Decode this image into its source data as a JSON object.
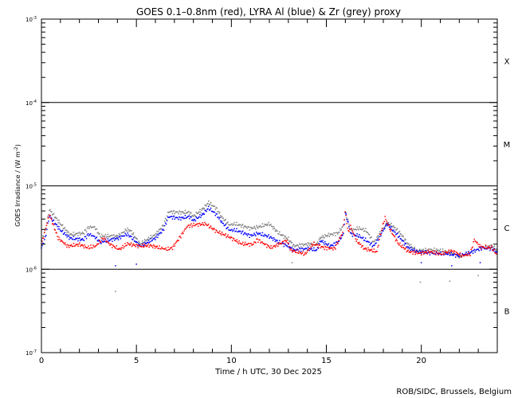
{
  "chart_data": {
    "type": "scatter",
    "title": "GOES 0.1–0.8nm (red), LYRA Al (blue) & Zr (grey) proxy",
    "xlabel": "Time / h UTC, 30 Dec 2025",
    "ylabel": "GOES Irradiance / (W m",
    "ylabel_sup": "-2",
    "ylabel_end": ")",
    "xlim": [
      0,
      24
    ],
    "ylim": [
      1e-07,
      0.001
    ],
    "yscale": "log",
    "x_ticks": [
      "0",
      "5",
      "10",
      "15",
      "20"
    ],
    "x_tick_values": [
      0,
      5,
      10,
      15,
      20
    ],
    "y_ticks": [
      {
        "base": "10",
        "exp": "-3",
        "value": 0.001
      },
      {
        "base": "10",
        "exp": "-4",
        "value": 0.0001
      },
      {
        "base": "10",
        "exp": "-5",
        "value": 1e-05
      },
      {
        "base": "10",
        "exp": "-6",
        "value": 1e-06
      },
      {
        "base": "10",
        "exp": "-7",
        "value": 1e-07
      }
    ],
    "flare_classes": [
      {
        "label": "X",
        "value": 0.000316
      },
      {
        "label": "M",
        "value": 3.16e-05
      },
      {
        "label": "C",
        "value": 3.16e-06
      },
      {
        "label": "B",
        "value": 3.16e-07
      }
    ],
    "threshold_lines": [
      0.0001,
      1e-05,
      1e-06
    ],
    "series": [
      {
        "name": "LYRA Zr proxy",
        "color": "#808080",
        "points": [
          [
            0,
            2.2e-06
          ],
          [
            0.2,
            2.9e-06
          ],
          [
            0.42,
            5.2e-06
          ],
          [
            1.0,
            3.5e-06
          ],
          [
            1.5,
            2.6e-06
          ],
          [
            2.2,
            2.7e-06
          ],
          [
            2.5,
            3.2e-06
          ],
          [
            2.8,
            3.2e-06
          ],
          [
            3.1,
            2.5e-06
          ],
          [
            4.05,
            2.5e-06
          ],
          [
            4.5,
            3e-06
          ],
          [
            4.7,
            2.9e-06
          ],
          [
            5.2,
            2e-06
          ],
          [
            5.6,
            2.3e-06
          ],
          [
            6.0,
            2.6e-06
          ],
          [
            6.4,
            3.3e-06
          ],
          [
            6.7,
            4.9e-06
          ],
          [
            7.3,
            4.8e-06
          ],
          [
            7.8,
            4.8e-06
          ],
          [
            8.0,
            4.3e-06
          ],
          [
            8.5,
            5.3e-06
          ],
          [
            8.8,
            6.3e-06
          ],
          [
            9.2,
            5.4e-06
          ],
          [
            9.5,
            4.2e-06
          ],
          [
            9.9,
            3.4e-06
          ],
          [
            10.2,
            3.5e-06
          ],
          [
            10.6,
            3.3e-06
          ],
          [
            11.0,
            3.1e-06
          ],
          [
            11.4,
            3.2e-06
          ],
          [
            12.0,
            3.5e-06
          ],
          [
            12.5,
            2.7e-06
          ],
          [
            13.0,
            2.3e-06
          ],
          [
            13.3,
            1.9e-06
          ],
          [
            14.0,
            2e-06
          ],
          [
            14.5,
            2e-06
          ],
          [
            14.7,
            2.4e-06
          ],
          [
            15.2,
            2.6e-06
          ],
          [
            15.6,
            2.7e-06
          ],
          [
            15.9,
            3.3e-06
          ],
          [
            16.0,
            4.9e-06
          ],
          [
            16.3,
            2.9e-06
          ],
          [
            16.7,
            3.1e-06
          ],
          [
            17.1,
            2.9e-06
          ],
          [
            17.5,
            2.1e-06
          ],
          [
            18.2,
            3.6e-06
          ],
          [
            18.5,
            3.3e-06
          ],
          [
            18.9,
            2.7e-06
          ],
          [
            19.3,
            2e-06
          ],
          [
            19.8,
            1.65e-06
          ],
          [
            20.3,
            1.7e-06
          ],
          [
            20.8,
            1.7e-06
          ],
          [
            21.5,
            1.6e-06
          ],
          [
            22.0,
            1.4e-06
          ],
          [
            22.6,
            1.6e-06
          ],
          [
            23.2,
            1.8e-06
          ],
          [
            23.7,
            1.9e-06
          ],
          [
            24,
            1.7e-06
          ]
        ]
      },
      {
        "name": "LYRA Al proxy",
        "color": "#0000ff",
        "points": [
          [
            0,
            1.8e-06
          ],
          [
            0.2,
            2.36e-06
          ],
          [
            0.42,
            4.36e-06
          ],
          [
            1.0,
            2.94e-06
          ],
          [
            1.5,
            2.36e-06
          ],
          [
            2.2,
            2.26e-06
          ],
          [
            2.5,
            2.63e-06
          ],
          [
            2.8,
            2.46e-06
          ],
          [
            3.1,
            2.11e-06
          ],
          [
            4.05,
            2.36e-06
          ],
          [
            4.5,
            2.63e-06
          ],
          [
            4.7,
            2.46e-06
          ],
          [
            5.2,
            1.89e-06
          ],
          [
            5.6,
            2.11e-06
          ],
          [
            6.0,
            2.36e-06
          ],
          [
            6.4,
            2.94e-06
          ],
          [
            6.7,
            4.27e-06
          ],
          [
            7.3,
            4.08e-06
          ],
          [
            7.8,
            4.27e-06
          ],
          [
            8.0,
            3.82e-06
          ],
          [
            8.5,
            4.56e-06
          ],
          [
            8.8,
            5.43e-06
          ],
          [
            9.2,
            4.56e-06
          ],
          [
            9.5,
            3.66e-06
          ],
          [
            9.9,
            2.94e-06
          ],
          [
            10.2,
            2.94e-06
          ],
          [
            10.6,
            2.75e-06
          ],
          [
            11.0,
            2.52e-06
          ],
          [
            11.4,
            2.69e-06
          ],
          [
            12.0,
            2.46e-06
          ],
          [
            12.5,
            2.11e-06
          ],
          [
            13.0,
            1.89e-06
          ],
          [
            13.3,
            1.69e-06
          ],
          [
            14.0,
            1.77e-06
          ],
          [
            14.5,
            1.69e-06
          ],
          [
            14.7,
            2.21e-06
          ],
          [
            15.2,
            1.89e-06
          ],
          [
            15.6,
            2.11e-06
          ],
          [
            15.9,
            2.63e-06
          ],
          [
            16.0,
            4.76e-06
          ],
          [
            16.3,
            2.63e-06
          ],
          [
            16.7,
            2.52e-06
          ],
          [
            17.1,
            2.21e-06
          ],
          [
            17.5,
            1.89e-06
          ],
          [
            18.2,
            3.5e-06
          ],
          [
            18.5,
            2.94e-06
          ],
          [
            18.9,
            2.36e-06
          ],
          [
            19.3,
            1.81e-06
          ],
          [
            19.8,
            1.62e-06
          ],
          [
            20.3,
            1.59e-06
          ],
          [
            20.8,
            1.55e-06
          ],
          [
            21.5,
            1.52e-06
          ],
          [
            22.0,
            1.45e-06
          ],
          [
            22.6,
            1.59e-06
          ],
          [
            23.2,
            1.81e-06
          ],
          [
            23.7,
            1.77e-06
          ],
          [
            24,
            1.59e-06
          ]
        ]
      },
      {
        "name": "GOES 0.1-0.8nm",
        "color": "#ff0000",
        "points": [
          [
            0,
            1.98e-06
          ],
          [
            0.42,
            4.56e-06
          ],
          [
            0.88,
            2.36e-06
          ],
          [
            1.38,
            1.89e-06
          ],
          [
            2.01,
            1.98e-06
          ],
          [
            2.43,
            1.81e-06
          ],
          [
            2.85,
            1.89e-06
          ],
          [
            3.27,
            2.36e-06
          ],
          [
            3.61,
            1.98e-06
          ],
          [
            4.11,
            1.73e-06
          ],
          [
            4.53,
            2.02e-06
          ],
          [
            5.16,
            1.89e-06
          ],
          [
            5.71,
            1.93e-06
          ],
          [
            6.21,
            1.81e-06
          ],
          [
            6.63,
            1.73e-06
          ],
          [
            6.9,
            1.81e-06
          ],
          [
            7.26,
            2.36e-06
          ],
          [
            7.68,
            3.28e-06
          ],
          [
            8.1,
            3.42e-06
          ],
          [
            8.64,
            3.5e-06
          ],
          [
            9.27,
            2.81e-06
          ],
          [
            9.86,
            2.46e-06
          ],
          [
            10.53,
            2.02e-06
          ],
          [
            11.12,
            1.98e-06
          ],
          [
            11.37,
            2.26e-06
          ],
          [
            11.79,
            1.98e-06
          ],
          [
            12.09,
            1.81e-06
          ],
          [
            12.93,
            2.21e-06
          ],
          [
            13.13,
            1.69e-06
          ],
          [
            13.89,
            1.52e-06
          ],
          [
            14.31,
            2.02e-06
          ],
          [
            14.9,
            1.81e-06
          ],
          [
            15.44,
            1.77e-06
          ],
          [
            15.86,
            2.75e-06
          ],
          [
            15.99,
            4.87e-06
          ],
          [
            16.16,
            2.75e-06
          ],
          [
            16.28,
            3.28e-06
          ],
          [
            16.58,
            2.21e-06
          ],
          [
            17.0,
            1.77e-06
          ],
          [
            17.67,
            1.62e-06
          ],
          [
            17.83,
            2.52e-06
          ],
          [
            18.09,
            4.17e-06
          ],
          [
            18.38,
            2.94e-06
          ],
          [
            18.8,
            2.02e-06
          ],
          [
            19.35,
            1.62e-06
          ],
          [
            19.93,
            1.55e-06
          ],
          [
            20.48,
            1.62e-06
          ],
          [
            21.02,
            1.52e-06
          ],
          [
            21.61,
            1.66e-06
          ],
          [
            22.16,
            1.45e-06
          ],
          [
            22.58,
            1.52e-06
          ],
          [
            22.79,
            2.26e-06
          ],
          [
            23.12,
            1.85e-06
          ],
          [
            23.71,
            1.81e-06
          ],
          [
            23.96,
            1.52e-06
          ]
        ]
      }
    ],
    "outliers": [
      {
        "color": "#808080",
        "x": 3.9,
        "y": 5.4e-07
      },
      {
        "color": "#0000ff",
        "x": 3.9,
        "y": 1.1e-06
      },
      {
        "color": "#0000ff",
        "x": 5.0,
        "y": 1.15e-06
      },
      {
        "color": "#808080",
        "x": 13.2,
        "y": 1.2e-06
      },
      {
        "color": "#808080",
        "x": 19.95,
        "y": 7e-07
      },
      {
        "color": "#0000ff",
        "x": 20.0,
        "y": 1.2e-06
      },
      {
        "color": "#808080",
        "x": 21.5,
        "y": 7.2e-07
      },
      {
        "color": "#0000ff",
        "x": 21.6,
        "y": 1.1e-06
      },
      {
        "color": "#808080",
        "x": 23.0,
        "y": 8.4e-07
      },
      {
        "color": "#0000ff",
        "x": 23.1,
        "y": 1.2e-06
      }
    ]
  },
  "footer": "ROB/SIDC, Brussels, Belgium"
}
